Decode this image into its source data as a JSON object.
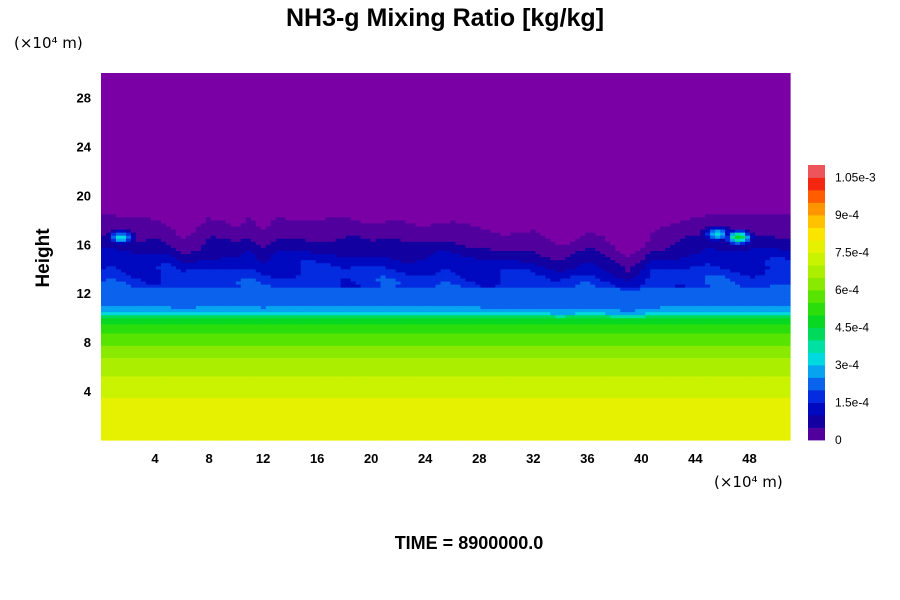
{
  "chart_data": {
    "type": "heatmap",
    "title": "NH3-g Mixing Ratio [kg/kg]",
    "ylabel": "Height",
    "xlabel": "",
    "x_unit": "(×10⁴ m)",
    "y_unit": "(×10⁴ m)",
    "x_ticks": [
      "4",
      "8",
      "12",
      "16",
      "20",
      "24",
      "28",
      "32",
      "36",
      "40",
      "44",
      "48"
    ],
    "y_ticks": [
      "4",
      "8",
      "12",
      "16",
      "20",
      "24",
      "28"
    ],
    "xlim": [
      0,
      51
    ],
    "ylim": [
      0,
      30
    ],
    "colorbar": {
      "min": 0,
      "max": 0.0011,
      "step": 5e-05,
      "tick_labels": [
        "0",
        "1.5e-4",
        "3e-4",
        "4.5e-4",
        "6e-4",
        "7.5e-4",
        "9e-4",
        "1.05e-3"
      ]
    },
    "field_profile": {
      "height": [
        0,
        2,
        3,
        5,
        7,
        8,
        9,
        10,
        10.2,
        10.4,
        11,
        12,
        13,
        14,
        15,
        16,
        17,
        17.8,
        18.4,
        19,
        30
      ],
      "value": [
        0.00077,
        0.00077,
        0.00076,
        0.00071,
        0.00064,
        0.00059,
        0.00053,
        0.00047,
        0.00039,
        0.00031,
        0.00025,
        0.000235,
        0.00022,
        0.00019,
        0.00015,
        9e-05,
        5e-05,
        2.5e-05,
        3e-06,
        0,
        0
      ]
    },
    "cloud_top": {
      "x": [
        0,
        1,
        2,
        3,
        4,
        5,
        6,
        7,
        8,
        9,
        10,
        11,
        12,
        13,
        14,
        15,
        16,
        17,
        18,
        19,
        20,
        21,
        22,
        23,
        24,
        25,
        26,
        27,
        28,
        29,
        30,
        31,
        32,
        33,
        34,
        35,
        36,
        37,
        38,
        39,
        40,
        41,
        42,
        43,
        44,
        45,
        46,
        47,
        48,
        49,
        50,
        51
      ],
      "height": [
        18.4,
        18.4,
        18.2,
        18.3,
        18.1,
        17.6,
        16.5,
        17.2,
        18.2,
        17.9,
        17.5,
        18.2,
        17.2,
        18.3,
        18.0,
        18.0,
        17.9,
        18.3,
        18.2,
        18.0,
        17.6,
        17.9,
        18.0,
        17.8,
        17.4,
        17.8,
        17.9,
        17.7,
        17.4,
        17.0,
        16.8,
        17.0,
        17.2,
        16.6,
        15.8,
        16.3,
        17.1,
        16.8,
        15.8,
        14.9,
        15.6,
        17.2,
        17.6,
        18.0,
        18.2,
        18.4,
        18.4,
        18.4,
        18.4,
        18.4,
        18.4,
        18.4
      ]
    },
    "hotspots": [
      {
        "x": 1.5,
        "height": 16.6,
        "value": 0.00032
      },
      {
        "x": 47.2,
        "height": 16.6,
        "value": 0.00047
      },
      {
        "x": 45.6,
        "height": 16.9,
        "value": 0.00034
      }
    ]
  },
  "footer": {
    "time_label": "TIME = 8900000.0"
  },
  "colors": {
    "zero": "#7a00a6",
    "background": "#ffffff"
  }
}
